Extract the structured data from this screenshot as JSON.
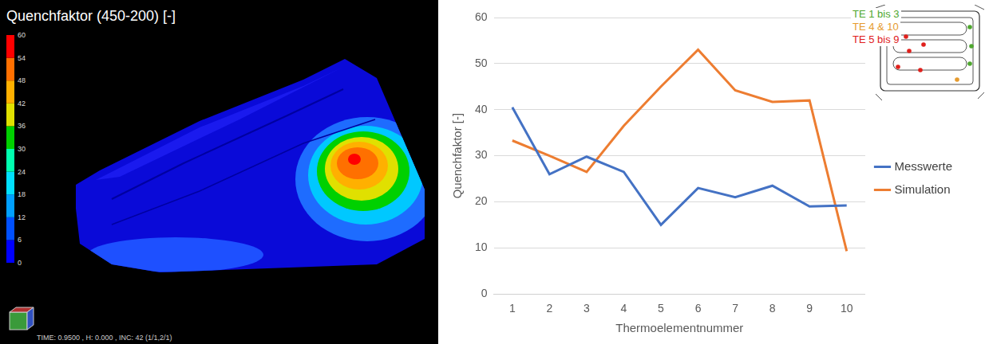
{
  "chart_data": {
    "type": "line",
    "categories": [
      1,
      2,
      3,
      4,
      5,
      6,
      7,
      8,
      9,
      10
    ],
    "series": [
      {
        "name": "Messwerte",
        "color": "#4472c4",
        "values": [
          40.5,
          26,
          29.8,
          26.5,
          15,
          23,
          21,
          23.5,
          19,
          19.2
        ]
      },
      {
        "name": "Simulation",
        "color": "#ed7d31",
        "values": [
          33.3,
          30,
          26.5,
          36.5,
          45,
          53,
          44.2,
          41.7,
          42,
          9.3
        ]
      }
    ],
    "x_label": "Thermoelementnummer",
    "y_label": "Quenchfaktor [-]",
    "ylim": [
      0,
      60
    ],
    "yticks": [
      0,
      10,
      20,
      30,
      40,
      50,
      60
    ],
    "grid": true,
    "legend": "right",
    "annotations": [
      {
        "text": "TE 1 bis 3",
        "color": "#4ea72e"
      },
      {
        "text": "TE 4 & 10",
        "color": "#e69b2e"
      },
      {
        "text": "TE 5 bis 9",
        "color": "#e0201c"
      }
    ]
  },
  "simulation_plot": {
    "title": "Quenchfaktor (450-200) [-]",
    "colorbar": {
      "range": [
        0,
        60
      ],
      "ticks": [
        0,
        6,
        12,
        18,
        24,
        30,
        36,
        42,
        48,
        54,
        60
      ]
    },
    "footer": "TIME: 0.9500 , H: 0.000 , INC: 42 (1/1,2/1)"
  }
}
